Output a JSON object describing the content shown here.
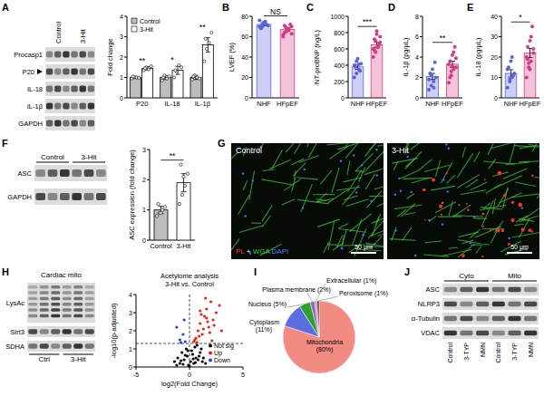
{
  "panel_labels": [
    "A",
    "B",
    "C",
    "D",
    "E",
    "F",
    "G",
    "H",
    "I",
    "J"
  ],
  "blots": [
    {
      "groups": [
        {
          "label": "Control",
          "lanes": 3
        },
        {
          "label": "3-Hit",
          "lanes": 3
        }
      ],
      "rows": [
        "Procasp1",
        "P20",
        "IL-18",
        "IL-1β",
        "GAPDH"
      ]
    },
    {
      "groups": [
        {
          "label": "Control",
          "lanes": 3
        },
        {
          "label": "3-Hit",
          "lanes": 3
        }
      ],
      "rows": [
        "ASC",
        "GAPDH"
      ]
    },
    {
      "title": "Cardiac mito",
      "groups": [
        {
          "label": "Ctrl",
          "lanes": 3
        },
        {
          "label": "3-Hit",
          "lanes": 3
        }
      ],
      "rows": [
        "LysAc",
        "Sirt3",
        "SDHA"
      ]
    },
    {
      "groups": [
        {
          "label": "Cyto",
          "lanes": [
            "Control",
            "3-TYP",
            "NMN"
          ]
        },
        {
          "label": "Mito",
          "lanes": [
            "Control",
            "3-TYP",
            "NMN"
          ]
        }
      ],
      "rows": [
        "ASC",
        "NLRP3",
        "α-Tubulin",
        "VDAC"
      ]
    }
  ],
  "image": {
    "panels": [
      "Control",
      "3-Hit"
    ],
    "legend_parts": [
      {
        "text": "PL",
        "color": "#ff2a2a"
      },
      {
        "text": " + ",
        "color": "#ffffff"
      },
      {
        "text": "WGA",
        "color": "#3cd13c"
      },
      {
        "text": " DAPI",
        "color": "#5a7bff"
      }
    ],
    "scale_bar": "50 μm"
  },
  "chart_data": [
    {
      "type": "bar",
      "ylabel": "Fold change",
      "categories": [
        "P20",
        "IL-18",
        "IL-1β"
      ],
      "series": [
        {
          "name": "Control",
          "color": "#bdbdbd",
          "values": [
            1,
            1,
            1
          ],
          "errors": [
            0.05,
            0.1,
            0.1
          ],
          "points": [
            [
              0.95,
              1.02,
              1.0,
              0.98,
              1.05
            ],
            [
              0.85,
              1.1,
              0.95,
              1.05,
              1.0
            ],
            [
              0.9,
              1.1,
              1.0,
              0.95,
              1.05
            ]
          ]
        },
        {
          "name": "3-Hit",
          "color": "#ffffff",
          "values": [
            1.45,
            1.35,
            2.6
          ],
          "errors": [
            0.08,
            0.2,
            0.35
          ],
          "points": [
            [
              1.35,
              1.5,
              1.4,
              1.55,
              1.45
            ],
            [
              1.0,
              1.3,
              1.6,
              1.5,
              1.35
            ],
            [
              1.8,
              2.4,
              2.7,
              3.2,
              2.9
            ]
          ]
        }
      ],
      "ylim": [
        0,
        4
      ],
      "yticks": [
        0,
        1,
        2,
        3,
        4
      ],
      "annotations": [
        "**",
        "*",
        "**"
      ],
      "legend": "top-left"
    },
    {
      "type": "bar",
      "ylabel": "LVEF (%)",
      "categories": [
        "NHF",
        "HFpEF"
      ],
      "values": [
        72,
        67
      ],
      "errors": [
        1.2,
        1.5
      ],
      "points": [
        [
          70,
          73,
          75,
          71,
          68,
          74,
          72,
          76,
          70
        ],
        [
          62,
          65,
          68,
          70,
          64,
          66,
          72,
          60,
          69,
          67,
          63,
          71
        ]
      ],
      "colors": [
        "#5b63d9",
        "#d23a82"
      ],
      "ylim": [
        0,
        80
      ],
      "yticks": [
        0,
        20,
        40,
        60,
        80
      ],
      "annotations": [
        "NS"
      ]
    },
    {
      "type": "bar",
      "ylabel": "NT-proBNP (ng/L)",
      "categories": [
        "NHF",
        "HFpEF"
      ],
      "values": [
        380,
        650
      ],
      "errors": [
        30,
        30
      ],
      "points": [
        [
          250,
          300,
          350,
          420,
          380,
          480,
          330,
          400,
          450,
          410
        ],
        [
          500,
          560,
          620,
          680,
          720,
          780,
          650,
          600,
          700,
          640,
          750,
          590,
          820
        ]
      ],
      "colors": [
        "#5b63d9",
        "#d23a82"
      ],
      "ylim": [
        0,
        1000
      ],
      "yticks": [
        0,
        200,
        400,
        600,
        800,
        1000
      ],
      "annotations": [
        "***"
      ]
    },
    {
      "type": "bar",
      "ylabel": "IL-1β (pg/μL)",
      "categories": [
        "NHF",
        "HFpEF"
      ],
      "values": [
        2.1,
        3.3
      ],
      "errors": [
        0.3,
        0.3
      ],
      "points": [
        [
          0.8,
          1.2,
          1.6,
          2.0,
          2.4,
          2.8,
          3.5,
          1.8,
          2.2,
          1.0
        ],
        [
          1.5,
          2.2,
          2.8,
          3.0,
          3.6,
          4.2,
          5.0,
          3.3,
          2.6,
          4.5,
          3.9,
          2.0,
          3.1
        ]
      ],
      "colors": [
        "#5b63d9",
        "#d23a82"
      ],
      "ylim": [
        0,
        8
      ],
      "yticks": [
        0,
        2,
        4,
        6,
        8
      ],
      "annotations": [
        "**"
      ]
    },
    {
      "type": "bar",
      "ylabel": "IL-18 (pg/μL)",
      "categories": [
        "NHF",
        "HFpEF"
      ],
      "values": [
        12,
        22
      ],
      "errors": [
        1.8,
        2.2
      ],
      "points": [
        [
          5,
          8,
          10,
          12,
          15,
          18,
          11,
          14,
          9,
          20
        ],
        [
          10,
          15,
          18,
          22,
          25,
          28,
          35,
          20,
          17,
          30,
          24,
          19,
          14
        ]
      ],
      "colors": [
        "#5b63d9",
        "#d23a82"
      ],
      "ylim": [
        0,
        40
      ],
      "yticks": [
        0,
        10,
        20,
        30,
        40
      ],
      "annotations": [
        "*"
      ]
    },
    {
      "type": "bar",
      "ylabel": "ASC expression (fold change)",
      "categories": [
        "Control",
        "3-Hit"
      ],
      "values": [
        1.0,
        1.9
      ],
      "errors": [
        0.12,
        0.3
      ],
      "points": [
        [
          0.8,
          0.9,
          1.0,
          1.1,
          1.2,
          0.9
        ],
        [
          1.2,
          1.5,
          1.8,
          2.2,
          2.5,
          2.1
        ]
      ],
      "colors": [
        "#bdbdbd",
        "#ffffff"
      ],
      "ylim": [
        0,
        3
      ],
      "yticks": [
        0,
        1,
        2,
        3
      ],
      "annotations": [
        "**"
      ]
    },
    {
      "type": "scatter",
      "title": "Acetylome analysis",
      "subtitle": "3-Hit vs. Control",
      "xlabel": "log2(Fold Change)",
      "ylabel": "-log10(p-adjusted)",
      "xlim": [
        -5,
        5
      ],
      "xticks": [
        -5,
        0,
        5
      ],
      "ylim": [
        0,
        4
      ],
      "yticks": [
        0,
        1,
        2,
        3,
        4
      ],
      "reference_lines": {
        "x": [
          0
        ],
        "y": [
          1.3
        ]
      },
      "legend": "bottom-right",
      "series": [
        {
          "name": "Not sig",
          "color": "#000000",
          "x": [
            -1.4,
            -1.1,
            -0.9,
            -0.7,
            -0.5,
            -0.3,
            -0.2,
            -0.1,
            0.1,
            0.2,
            0.3,
            0.4,
            0.5,
            0.6,
            0.8,
            1.0,
            1.2,
            1.5,
            -0.6,
            -0.4,
            0.0,
            0.7,
            0.9,
            -0.8,
            1.1,
            -1.2,
            0.35,
            -0.15,
            0.55,
            1.3
          ],
          "values": [
            0.3,
            0.5,
            0.2,
            0.8,
            0.4,
            1.0,
            0.6,
            0.1,
            0.3,
            0.9,
            0.7,
            0.2,
            1.1,
            0.5,
            0.4,
            0.8,
            0.3,
            0.2,
            0.15,
            0.65,
            0.05,
            1.2,
            0.6,
            0.35,
            1.0,
            0.1,
            0.45,
            0.9,
            0.25,
            0.5
          ]
        },
        {
          "name": "Up",
          "color": "#e8201e",
          "x": [
            0.4,
            0.6,
            0.8,
            1.0,
            1.2,
            1.4,
            1.6,
            1.8,
            2.0,
            2.2,
            2.5,
            2.8,
            0.5,
            0.9,
            1.1,
            1.3,
            1.5,
            1.7,
            1.9,
            2.3,
            0.7,
            1.0,
            1.6,
            2.1,
            3.0
          ],
          "values": [
            1.4,
            1.6,
            2.0,
            2.4,
            1.8,
            2.8,
            3.2,
            2.2,
            3.6,
            2.6,
            3.0,
            3.4,
            1.5,
            1.7,
            2.9,
            2.1,
            3.8,
            2.5,
            1.9,
            2.3,
            1.35,
            3.1,
            2.7,
            1.45,
            2.0
          ]
        },
        {
          "name": "Down",
          "color": "#2440d8",
          "x": [
            -0.4,
            -0.6,
            -0.9,
            -1.2,
            -0.5,
            -0.8
          ],
          "values": [
            1.4,
            1.8,
            1.5,
            2.2,
            2.6,
            1.35
          ]
        }
      ]
    },
    {
      "type": "pie",
      "categories": [
        "Mitochondria",
        "Cytoplasm",
        "Nucleus",
        "Plasma membrane",
        "Extracellular",
        "Peroxisome"
      ],
      "values": [
        80,
        11,
        5,
        2,
        1,
        1
      ],
      "value_labels": [
        "(80%)",
        "(11%)",
        "(5%)",
        "(2%)",
        "(1%)",
        "(1%)"
      ],
      "colors": [
        "#f28b82",
        "#5b6ee1",
        "#2ca02c",
        "#9467bd",
        "#e377c2",
        "#444444"
      ]
    }
  ]
}
